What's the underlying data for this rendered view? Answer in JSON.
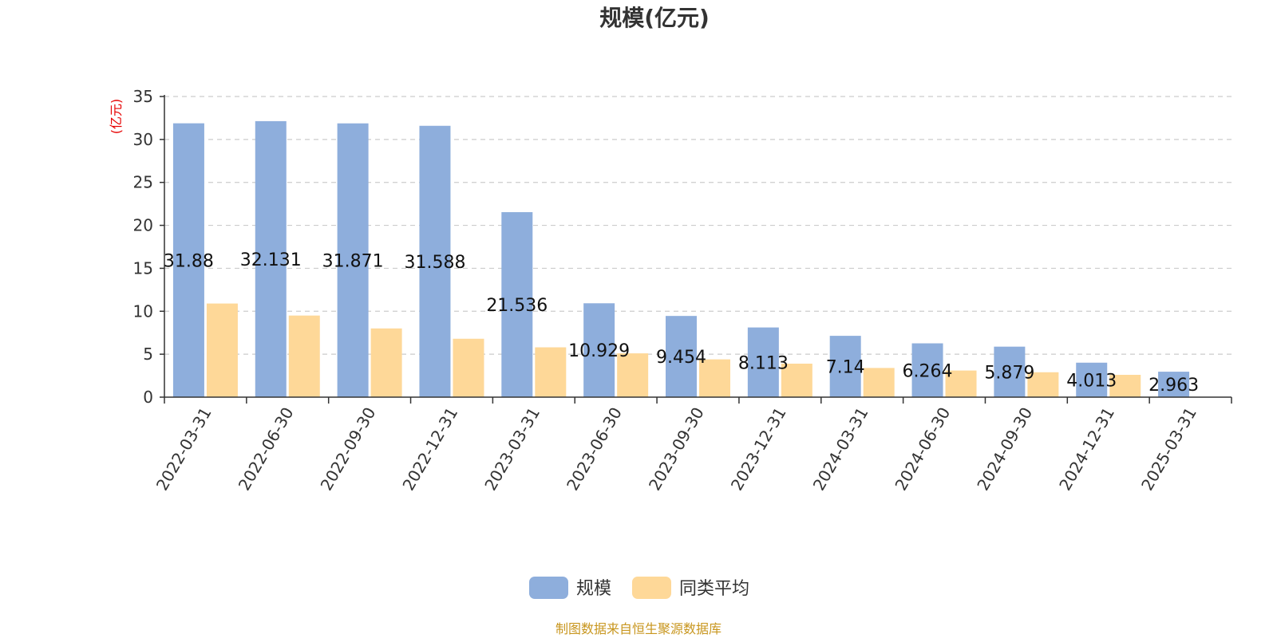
{
  "chart_data": {
    "type": "bar",
    "title": "规模(亿元)",
    "ylabel": "(亿元)",
    "xlabel": "",
    "ylim": [
      0,
      35
    ],
    "yticks": [
      0,
      5,
      10,
      15,
      20,
      25,
      30,
      35
    ],
    "grid": true,
    "legend_position": "bottom-center",
    "categories": [
      "2022-03-31",
      "2022-06-30",
      "2022-09-30",
      "2022-12-31",
      "2023-03-31",
      "2023-06-30",
      "2023-09-30",
      "2023-12-31",
      "2024-03-31",
      "2024-06-30",
      "2024-09-30",
      "2024-12-31",
      "2025-03-31"
    ],
    "series": [
      {
        "name": "规模",
        "color": "#8eaedc",
        "values": [
          31.88,
          32.131,
          31.871,
          31.588,
          21.536,
          10.929,
          9.454,
          8.113,
          7.14,
          6.264,
          5.879,
          4.013,
          2.963
        ],
        "labels": [
          "31.88",
          "32.131",
          "31.871",
          "31.588",
          "21.536",
          "10.929",
          "9.454",
          "8.113",
          "7.14",
          "6.264",
          "5.879",
          "4.013",
          "2.963"
        ]
      },
      {
        "name": "同类平均",
        "color": "#fed898",
        "values": [
          10.9,
          9.5,
          8.0,
          6.8,
          5.8,
          5.1,
          4.4,
          3.9,
          3.4,
          3.1,
          2.9,
          2.6,
          null
        ]
      }
    ]
  },
  "colors": {
    "ylabel": "#e60000",
    "source": "#c8961e",
    "grid": "#cccccc",
    "axis": "#333333"
  },
  "source_text": "制图数据来自恒生聚源数据库"
}
